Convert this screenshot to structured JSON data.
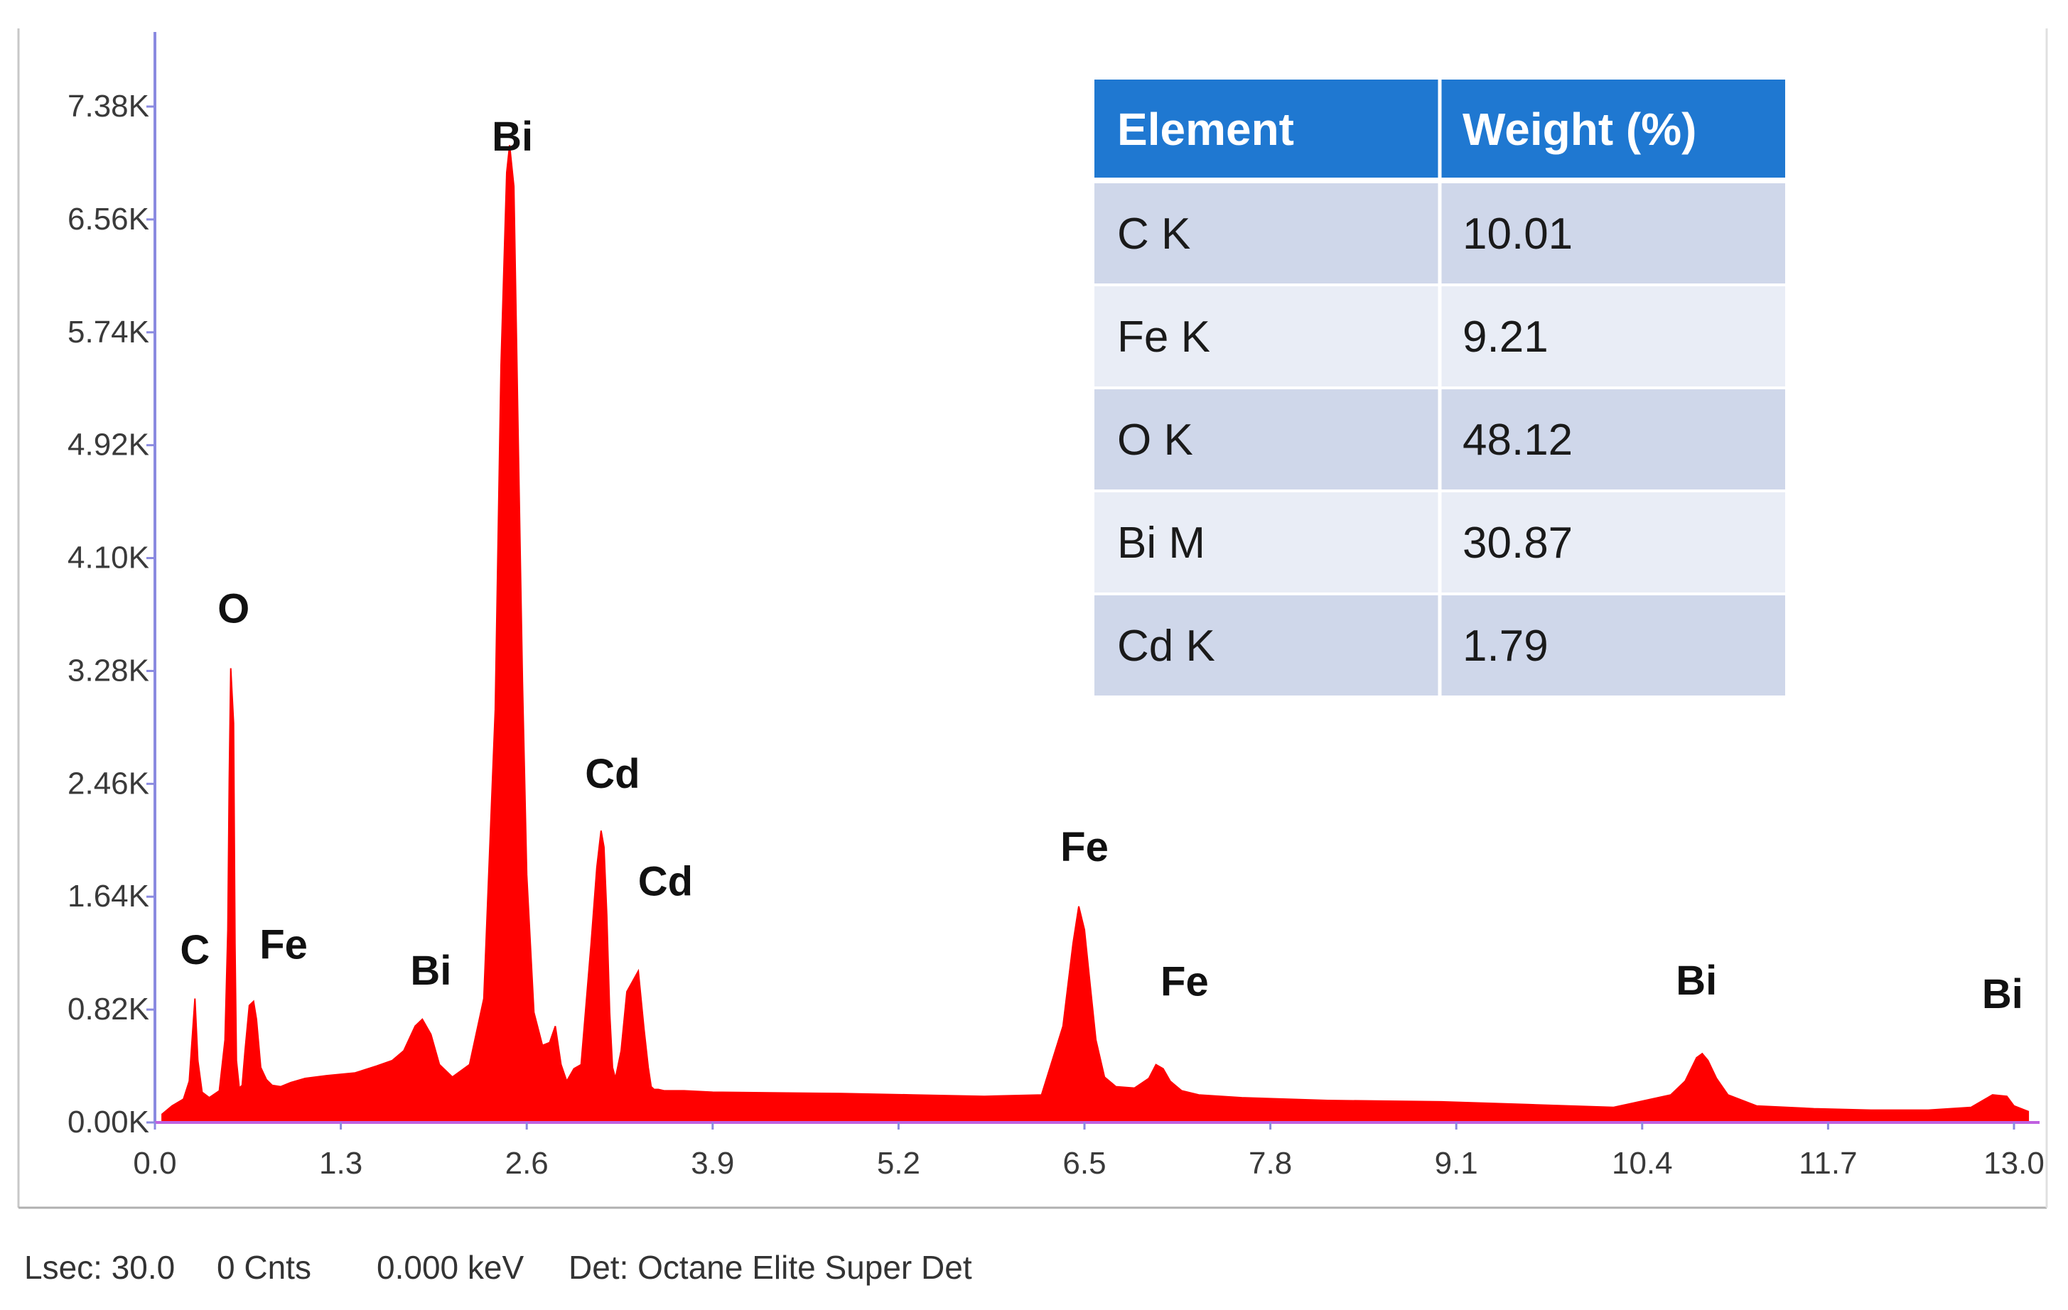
{
  "chart_data": {
    "type": "area",
    "x_ticks": [
      "0.0",
      "1.3",
      "2.6",
      "3.9",
      "5.2",
      "6.5",
      "7.8",
      "9.1",
      "10.4",
      "11.7",
      "13.0"
    ],
    "y_ticks": [
      "0.00K",
      "0.82K",
      "1.64K",
      "2.46K",
      "3.28K",
      "4.10K",
      "4.92K",
      "5.74K",
      "6.56K",
      "7.38K"
    ],
    "xlim": [
      0.0,
      13.0
    ],
    "ylim": [
      0,
      7380
    ],
    "fill_color": "#ff0000",
    "baseline_color": "#c060e0",
    "axis_color": "#8a8ae0",
    "grid": false,
    "spectrum": {
      "x": [
        0.05,
        0.12,
        0.2,
        0.24,
        0.26,
        0.28,
        0.3,
        0.33,
        0.38,
        0.45,
        0.49,
        0.51,
        0.52,
        0.53,
        0.55,
        0.56,
        0.57,
        0.59,
        0.61,
        0.63,
        0.66,
        0.69,
        0.71,
        0.74,
        0.78,
        0.82,
        0.88,
        0.95,
        1.05,
        1.2,
        1.4,
        1.55,
        1.66,
        1.74,
        1.82,
        1.87,
        1.93,
        1.99,
        2.08,
        2.2,
        2.3,
        2.38,
        2.42,
        2.46,
        2.48,
        2.51,
        2.54,
        2.57,
        2.6,
        2.65,
        2.71,
        2.76,
        2.8,
        2.84,
        2.88,
        2.93,
        2.98,
        3.05,
        3.09,
        3.12,
        3.14,
        3.16,
        3.18,
        3.2,
        3.22,
        3.26,
        3.3,
        3.38,
        3.42,
        3.45,
        3.47,
        3.49,
        3.52,
        3.56,
        3.6,
        3.7,
        3.9,
        4.3,
        4.8,
        5.3,
        5.8,
        6.2,
        6.35,
        6.42,
        6.46,
        6.5,
        6.54,
        6.58,
        6.64,
        6.72,
        6.85,
        6.95,
        7.0,
        7.05,
        7.1,
        7.18,
        7.3,
        7.6,
        8.2,
        9.0,
        9.6,
        10.2,
        10.6,
        10.7,
        10.78,
        10.82,
        10.86,
        10.92,
        11.0,
        11.2,
        11.6,
        12.0,
        12.4,
        12.7,
        12.85,
        12.95,
        13.0,
        13.1
      ],
      "y": [
        60,
        120,
        170,
        300,
        600,
        900,
        450,
        220,
        180,
        230,
        600,
        1400,
        2500,
        3300,
        2900,
        1300,
        450,
        250,
        270,
        520,
        850,
        880,
        750,
        400,
        310,
        270,
        260,
        290,
        320,
        340,
        360,
        410,
        450,
        520,
        700,
        750,
        640,
        420,
        330,
        420,
        900,
        3000,
        5500,
        6900,
        7100,
        6800,
        5000,
        3200,
        1800,
        800,
        560,
        580,
        700,
        420,
        300,
        390,
        420,
        1300,
        1850,
        2120,
        2000,
        1500,
        800,
        400,
        320,
        520,
        950,
        1100,
        680,
        400,
        260,
        240,
        240,
        230,
        230,
        230,
        220,
        215,
        210,
        200,
        190,
        200,
        700,
        1300,
        1570,
        1400,
        1000,
        600,
        330,
        260,
        250,
        320,
        420,
        390,
        300,
        230,
        200,
        180,
        160,
        150,
        130,
        110,
        200,
        300,
        470,
        500,
        450,
        320,
        200,
        120,
        100,
        90,
        90,
        110,
        200,
        190,
        120,
        80
      ]
    },
    "peak_labels": [
      {
        "text": "Bi",
        "x": 2.5,
        "y": 7060
      },
      {
        "text": "O",
        "x": 0.55,
        "y": 3630
      },
      {
        "text": "C",
        "x": 0.28,
        "y": 1150
      },
      {
        "text": "Fe",
        "x": 0.9,
        "y": 1190
      },
      {
        "text": "Bi",
        "x": 1.93,
        "y": 1000
      },
      {
        "text": "Cd",
        "x": 3.2,
        "y": 2430
      },
      {
        "text": "Cd",
        "x": 3.57,
        "y": 1650
      },
      {
        "text": "Fe",
        "x": 6.5,
        "y": 1900
      },
      {
        "text": "Fe",
        "x": 7.2,
        "y": 920
      },
      {
        "text": "Bi",
        "x": 10.78,
        "y": 930
      },
      {
        "text": "Bi",
        "x": 12.92,
        "y": 830
      }
    ]
  },
  "composition_table": {
    "header_color": "#1f78d1",
    "row_dark_color": "#cfd7ea",
    "row_light_color": "#e9edf6",
    "headers": [
      "Element",
      "Weight (%)"
    ],
    "rows": [
      [
        "C K",
        "10.01"
      ],
      [
        "Fe K",
        "9.21"
      ],
      [
        "O K",
        "48.12"
      ],
      [
        "Bi M",
        "30.87"
      ],
      [
        "Cd K",
        "1.79"
      ]
    ]
  },
  "status_bar": {
    "lsec": "Lsec: 30.0",
    "counts": "0 Cnts",
    "energy": "0.000 keV",
    "detector": "Det: Octane Elite Super Det"
  }
}
